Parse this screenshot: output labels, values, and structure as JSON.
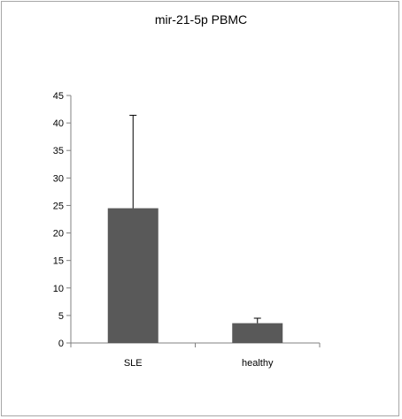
{
  "chart_data": {
    "type": "bar",
    "title": "mir-21-5p PBMC",
    "xlabel": "",
    "ylabel": "",
    "categories": [
      "SLE",
      "healthy"
    ],
    "values": [
      24.5,
      3.6
    ],
    "error_upper": [
      16.9,
      0.9
    ],
    "ylim": [
      0,
      45
    ],
    "yticks": [
      0,
      5,
      10,
      15,
      20,
      25,
      30,
      35,
      40,
      45
    ],
    "grid": false,
    "legend": "none",
    "bar_color": "#595959",
    "error_bar_direction": "upper"
  }
}
